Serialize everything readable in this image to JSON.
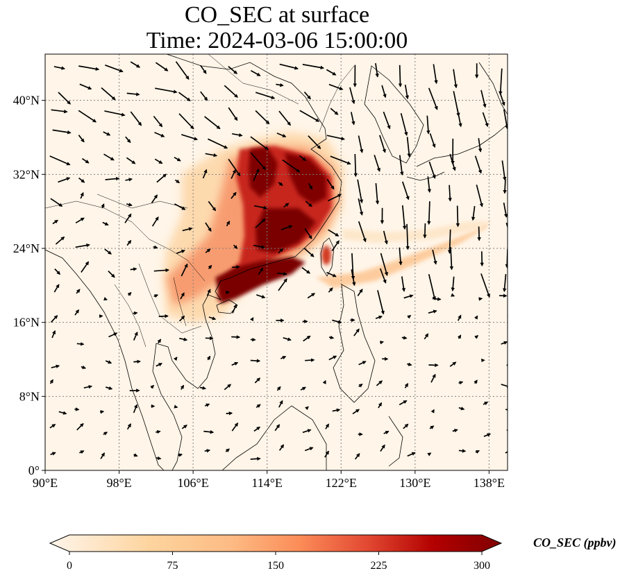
{
  "title": {
    "line1": "CO_SEC at surface",
    "line2": "Time: 2024-03-06 15:00:00"
  },
  "map": {
    "lon_range": [
      90,
      140
    ],
    "lat_range": [
      0,
      45
    ],
    "lon_ticks": [
      {
        "value": 90,
        "label": "90°E"
      },
      {
        "value": 98,
        "label": "98°E"
      },
      {
        "value": 106,
        "label": "106°E"
      },
      {
        "value": 114,
        "label": "114°E"
      },
      {
        "value": 122,
        "label": "122°E"
      },
      {
        "value": 130,
        "label": "130°E"
      },
      {
        "value": 138,
        "label": "138°E"
      }
    ],
    "lat_ticks": [
      {
        "value": 0,
        "label": "0°"
      },
      {
        "value": 8,
        "label": "8°N"
      },
      {
        "value": 16,
        "label": "16°N"
      },
      {
        "value": 24,
        "label": "24°N"
      },
      {
        "value": 32,
        "label": "32°N"
      },
      {
        "value": 40,
        "label": "40°N"
      }
    ],
    "gridlines": true,
    "background_color": "#fff5e8"
  },
  "colorbar": {
    "label": "CO_SEC (ppbv)",
    "min": 0,
    "max": 300,
    "ticks": [
      "0",
      "75",
      "150",
      "225",
      "300"
    ],
    "colors": [
      "#fff5eb",
      "#fdd49e",
      "#fdbb84",
      "#fc8d59",
      "#e34a33",
      "#b30000",
      "#7f0000"
    ]
  }
}
